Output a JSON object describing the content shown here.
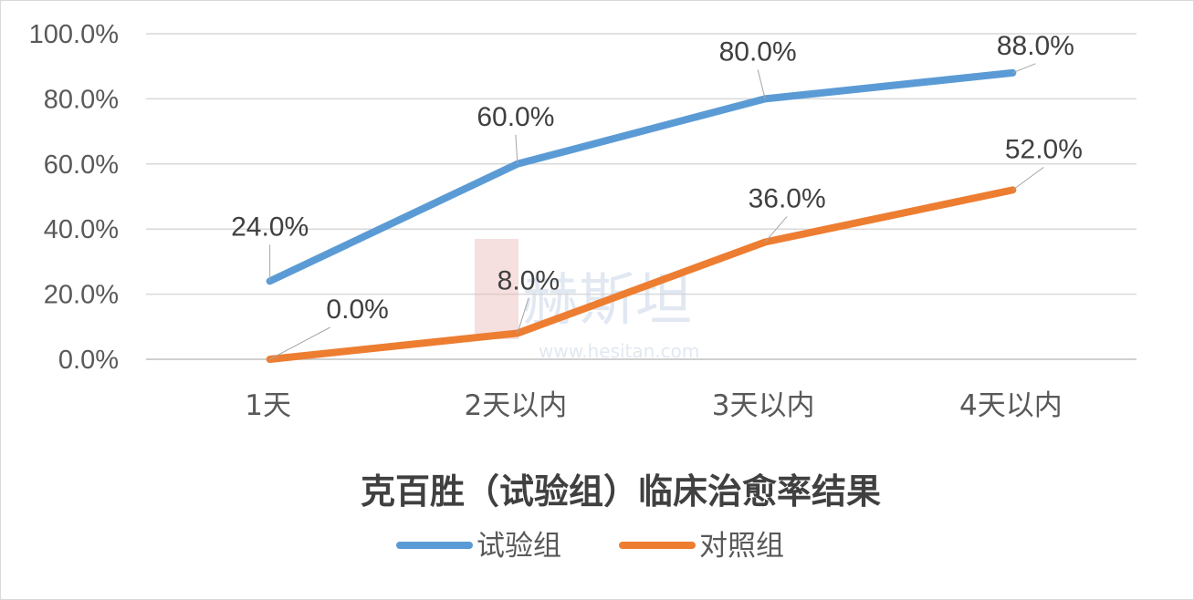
{
  "chart_data": {
    "type": "line",
    "title": "克百胜（试验组）临床治愈率结果",
    "categories": [
      "1天",
      "2天以内",
      "3天以内",
      "4天以内"
    ],
    "y_ticks": [
      "0.0%",
      "20.0%",
      "40.0%",
      "60.0%",
      "80.0%",
      "100.0%"
    ],
    "ylim": [
      0,
      100
    ],
    "grid": true,
    "legend_position": "bottom",
    "series": [
      {
        "name": "试验组",
        "color": "#5b9bd5",
        "values": [
          24,
          60,
          80,
          88
        ],
        "labels": [
          "24.0%",
          "60.0%",
          "80.0%",
          "88.0%"
        ]
      },
      {
        "name": "对照组",
        "color": "#ed7d31",
        "values": [
          0,
          8,
          36,
          52
        ],
        "labels": [
          "0.0%",
          "8.0%",
          "36.0%",
          "52.0%"
        ]
      }
    ]
  },
  "watermark": {
    "text": "赫斯坦",
    "url": "www.hesitan.com"
  }
}
